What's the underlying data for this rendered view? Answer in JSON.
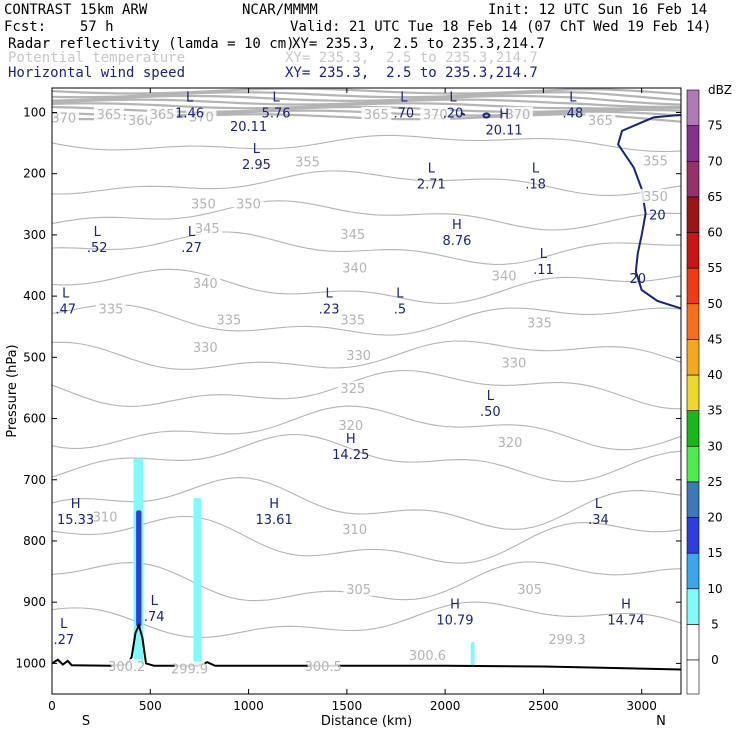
{
  "header": {
    "model": "CONTRAST 15km ARW",
    "org": "NCAR/MMMM",
    "init": "Init: 12 UTC Sun 16 Feb 14",
    "fcst": "Fcst:    57 h",
    "valid": "Valid: 21 UTC Tue 18 Feb 14 (07 ChT Wed 19 Feb 14)",
    "field1": "Radar reflectivity (lamda = 10 cm)",
    "field1_xy": "XY= 235.3,  2.5 to 235.3,214.7",
    "field2": "Potential temperature",
    "field2_xy": "XY= 235.3,  2.5 to 235.3,214.7",
    "field3": "Horizontal wind speed",
    "field3_xy": "XY= 235.3,  2.5 to 235.3,214.7"
  },
  "colors": {
    "theta": "#b4b4b4",
    "wind": "#1a237e",
    "terrain": "#000000"
  },
  "chart_data": {
    "type": "cross-section",
    "xlabel": "Distance (km)",
    "ylabel": "Pressure (hPa)",
    "xlim": [
      0,
      3200
    ],
    "ylim": [
      1050,
      60
    ],
    "x_ticks": [
      0,
      500,
      1000,
      1500,
      2000,
      2500,
      3000
    ],
    "y_ticks": [
      100,
      200,
      300,
      400,
      500,
      600,
      700,
      800,
      900,
      1000
    ],
    "x_end_labels": {
      "left": "S",
      "right": "N"
    },
    "colorbar": {
      "unit": "dBZ",
      "levels": [
        0,
        5,
        10,
        15,
        20,
        25,
        30,
        35,
        40,
        45,
        50,
        55,
        60,
        65,
        70,
        75
      ],
      "colors": [
        "#ffffff",
        "#7ffafa",
        "#3aa6ee",
        "#2c3ee0",
        "#3a7ab8",
        "#4ded4d",
        "#16b81a",
        "#f0d82a",
        "#f5a91a",
        "#f86e1a",
        "#f23a12",
        "#cc1414",
        "#9e1414",
        "#98306a",
        "#88308e",
        "#b07ab8"
      ]
    },
    "theta_labels": [
      {
        "x": 60,
        "p": 110,
        "t": "370"
      },
      {
        "x": 290,
        "p": 104,
        "t": "365"
      },
      {
        "x": 450,
        "p": 114,
        "t": "360"
      },
      {
        "x": 560,
        "p": 104,
        "t": "365"
      },
      {
        "x": 760,
        "p": 108,
        "t": "370"
      },
      {
        "x": 1650,
        "p": 104,
        "t": "365"
      },
      {
        "x": 1950,
        "p": 104,
        "t": "370"
      },
      {
        "x": 2370,
        "p": 104,
        "t": "370"
      },
      {
        "x": 2790,
        "p": 114,
        "t": "365"
      },
      {
        "x": 1300,
        "p": 182,
        "t": "355"
      },
      {
        "x": 770,
        "p": 250,
        "t": "350"
      },
      {
        "x": 1000,
        "p": 250,
        "t": "350"
      },
      {
        "x": 790,
        "p": 290,
        "t": "345"
      },
      {
        "x": 1530,
        "p": 300,
        "t": "345"
      },
      {
        "x": 1540,
        "p": 355,
        "t": "340"
      },
      {
        "x": 2300,
        "p": 368,
        "t": "340"
      },
      {
        "x": 780,
        "p": 380,
        "t": "340"
      },
      {
        "x": 300,
        "p": 422,
        "t": "335"
      },
      {
        "x": 900,
        "p": 440,
        "t": "335"
      },
      {
        "x": 1530,
        "p": 440,
        "t": "335"
      },
      {
        "x": 2480,
        "p": 445,
        "t": "335"
      },
      {
        "x": 780,
        "p": 485,
        "t": "330"
      },
      {
        "x": 1560,
        "p": 498,
        "t": "330"
      },
      {
        "x": 2350,
        "p": 510,
        "t": "330"
      },
      {
        "x": 1530,
        "p": 552,
        "t": "325"
      },
      {
        "x": 1520,
        "p": 612,
        "t": "320"
      },
      {
        "x": 2330,
        "p": 640,
        "t": "320"
      },
      {
        "x": 270,
        "p": 762,
        "t": "310"
      },
      {
        "x": 1540,
        "p": 782,
        "t": "310"
      },
      {
        "x": 1560,
        "p": 880,
        "t": "305"
      },
      {
        "x": 2430,
        "p": 880,
        "t": "305"
      },
      {
        "x": 380,
        "p": 1006,
        "t": "300.2"
      },
      {
        "x": 700,
        "p": 1010,
        "t": "299.9"
      },
      {
        "x": 1380,
        "p": 1006,
        "t": "300.5"
      },
      {
        "x": 1910,
        "p": 988,
        "t": "300.6"
      },
      {
        "x": 2620,
        "p": 962,
        "t": "299.3"
      },
      {
        "x": 3070,
        "p": 180,
        "t": "355"
      },
      {
        "x": 3070,
        "p": 238,
        "t": "350"
      }
    ],
    "wind_labels": [
      {
        "x": 1000,
        "p": 122,
        "t": "20.11",
        "dx": 0
      },
      {
        "x": 3080,
        "p": 267,
        "t": "20",
        "dx": 0
      },
      {
        "x": 2980,
        "p": 370,
        "t": "20",
        "dx": 0
      }
    ],
    "extrema": [
      {
        "k": "L",
        "v": "1.46",
        "x": 700,
        "p": 82
      },
      {
        "k": "L",
        "v": "5.76",
        "x": 1140,
        "p": 82
      },
      {
        "k": "L",
        "v": ".70",
        "x": 1790,
        "p": 82
      },
      {
        "k": "L",
        "v": ".20",
        "x": 2040,
        "p": 82
      },
      {
        "k": "L",
        "v": ".48",
        "x": 2650,
        "p": 82
      },
      {
        "k": "L",
        "v": "2.95",
        "x": 1040,
        "p": 166
      },
      {
        "k": "L",
        "v": "2.71",
        "x": 1930,
        "p": 198
      },
      {
        "k": "L",
        "v": ".18",
        "x": 2460,
        "p": 198
      },
      {
        "k": "H",
        "v": "20.11",
        "x": 2300,
        "p": 110
      },
      {
        "k": "H",
        "v": "8.76",
        "x": 2060,
        "p": 290
      },
      {
        "k": "L",
        "v": ".52",
        "x": 230,
        "p": 302
      },
      {
        "k": "L",
        "v": ".27",
        "x": 710,
        "p": 302
      },
      {
        "k": "L",
        "v": ".11",
        "x": 2500,
        "p": 338
      },
      {
        "k": "L",
        "v": ".47",
        "x": 70,
        "p": 402
      },
      {
        "k": "L",
        "v": ".23",
        "x": 1410,
        "p": 402
      },
      {
        "k": "L",
        "v": ".5",
        "x": 1770,
        "p": 402
      },
      {
        "k": "L",
        "v": ".50",
        "x": 2230,
        "p": 570
      },
      {
        "k": "H",
        "v": "14.25",
        "x": 1520,
        "p": 640
      },
      {
        "k": "H",
        "v": "15.33",
        "x": 120,
        "p": 746
      },
      {
        "k": "H",
        "v": "13.61",
        "x": 1130,
        "p": 746
      },
      {
        "k": "L",
        "v": ".34",
        "x": 2780,
        "p": 746
      },
      {
        "k": "L",
        "v": ".74",
        "x": 520,
        "p": 905
      },
      {
        "k": "L",
        "v": ".27",
        "x": 60,
        "p": 942
      },
      {
        "k": "H",
        "v": "10.79",
        "x": 2050,
        "p": 910
      },
      {
        "k": "H",
        "v": "14.74",
        "x": 2920,
        "p": 910
      }
    ],
    "reflectivity_cells": [
      {
        "x0": 415,
        "x1": 465,
        "p_top": 665,
        "p_bot": 1002,
        "dbz": 8
      },
      {
        "x0": 428,
        "x1": 455,
        "p_top": 750,
        "p_bot": 940,
        "dbz": 17
      },
      {
        "x0": 720,
        "x1": 760,
        "p_top": 730,
        "p_bot": 1008,
        "dbz": 8
      },
      {
        "x0": 2130,
        "x1": 2150,
        "p_top": 965,
        "p_bot": 1004,
        "dbz": 8
      }
    ],
    "terrain": [
      [
        0,
        1000
      ],
      [
        30,
        994
      ],
      [
        55,
        1002
      ],
      [
        80,
        996
      ],
      [
        100,
        1003
      ],
      [
        300,
        1004
      ],
      [
        380,
        1002
      ],
      [
        405,
        990
      ],
      [
        425,
        950
      ],
      [
        442,
        938
      ],
      [
        460,
        958
      ],
      [
        478,
        1000
      ],
      [
        520,
        1004
      ],
      [
        740,
        1004
      ],
      [
        790,
        998
      ],
      [
        830,
        1004
      ],
      [
        1500,
        1004
      ],
      [
        2000,
        1004
      ],
      [
        2500,
        1005
      ],
      [
        2800,
        1007
      ],
      [
        3200,
        1010
      ]
    ]
  }
}
